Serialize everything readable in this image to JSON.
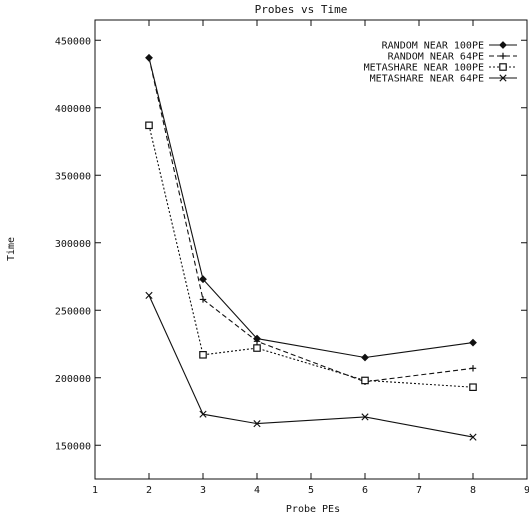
{
  "chart_data": {
    "type": "line",
    "title": "Probes vs Time",
    "xlabel": "Probe PEs",
    "ylabel": "Time",
    "xlim": [
      1,
      9
    ],
    "ylim": [
      125000,
      465000
    ],
    "xticks": [
      "1",
      "2",
      "3",
      "4",
      "5",
      "6",
      "7",
      "8",
      "9"
    ],
    "yticks": [
      "150000",
      "200000",
      "250000",
      "300000",
      "350000",
      "400000",
      "450000"
    ],
    "grid": false,
    "legend_position": "top-right",
    "x": [
      2,
      3,
      4,
      6,
      8
    ],
    "series": [
      {
        "name": "RANDOM NEAR 100PE",
        "marker": "diamond",
        "dash": "solid",
        "values": [
          437000,
          273000,
          229000,
          215000,
          226000
        ]
      },
      {
        "name": "RANDOM NEAR 64PE",
        "marker": "plus",
        "dash": "dashed",
        "values": [
          437000,
          258000,
          227000,
          197000,
          207000
        ]
      },
      {
        "name": "METASHARE NEAR 100PE",
        "marker": "square",
        "dash": "dotted",
        "values": [
          387000,
          217000,
          222000,
          198000,
          193000
        ]
      },
      {
        "name": "METASHARE NEAR 64PE",
        "marker": "cross",
        "dash": "solid",
        "values": [
          261000,
          173000,
          166000,
          171000,
          156000
        ]
      }
    ]
  }
}
